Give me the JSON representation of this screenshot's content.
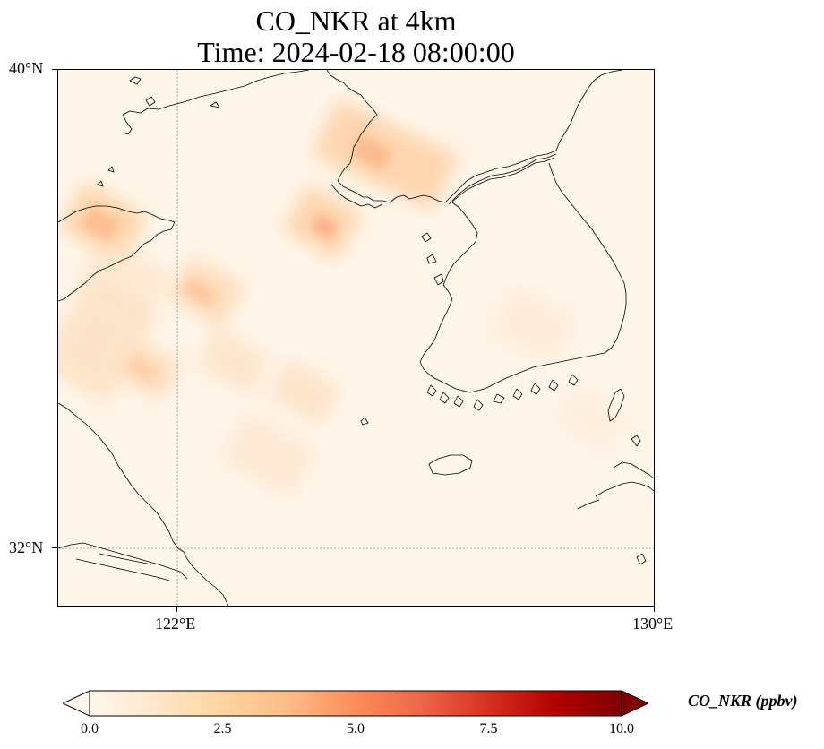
{
  "title": {
    "line1": "CO_NKR at 4km",
    "line2": "Time: 2024-02-18 08:00:00"
  },
  "map": {
    "lat_range": [
      31,
      40
    ],
    "lon_range": [
      120,
      130
    ],
    "gridlines": {
      "lat": [
        32
      ],
      "lon": [
        122
      ],
      "style": "dotted"
    },
    "axis_labels": {
      "lat": [
        "40°N",
        "32°N"
      ],
      "lon": [
        "122°E",
        "130°E"
      ]
    },
    "background_color": "#fff6ea",
    "coastline_color": "#000000"
  },
  "colorbar": {
    "label": "CO_NKR (ppbv)",
    "min": 0.0,
    "max": 10.0,
    "extend": "both",
    "colormap": "OrRd",
    "colors": [
      "#fff7ec",
      "#fee8c8",
      "#fdd49e",
      "#fdbb84",
      "#fc8d59",
      "#ef6548",
      "#d7301f",
      "#b30000",
      "#7f0000"
    ],
    "ticks": [
      "0.0",
      "2.5",
      "5.0",
      "7.5",
      "10.0"
    ]
  }
}
